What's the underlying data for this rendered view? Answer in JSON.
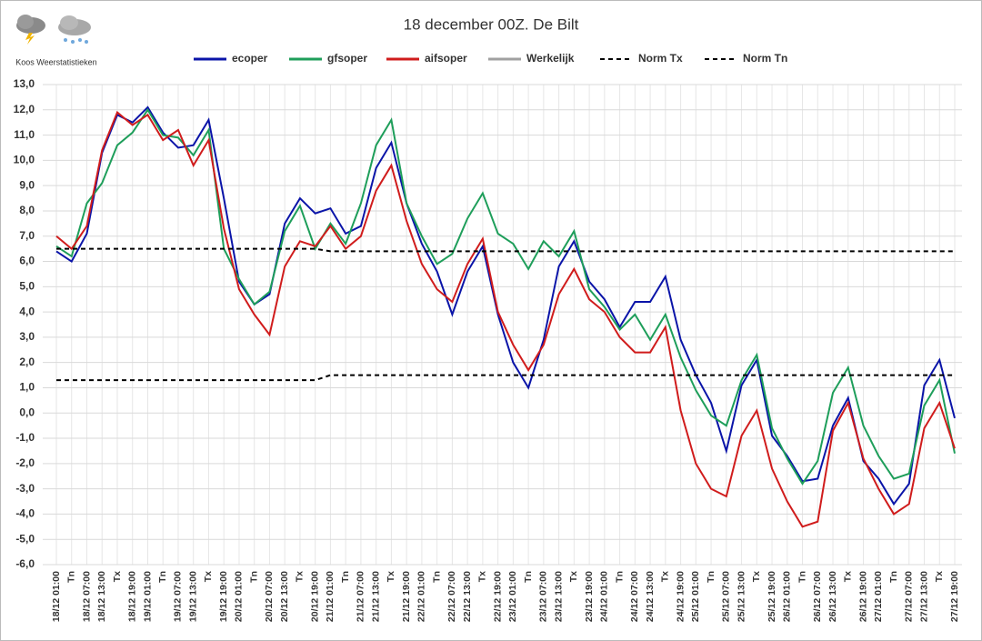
{
  "chart_data": {
    "type": "line",
    "title": "18 december 00Z. De Bilt",
    "brand": "Koos Weerstatistieken",
    "categories": [
      "18/12 01:00",
      "Tn",
      "18/12 07:00",
      "18/12 13:00",
      "Tx",
      "18/12 19:00",
      "19/12 01:00",
      "Tn",
      "19/12 07:00",
      "19/12 13:00",
      "Tx",
      "19/12 19:00",
      "20/12 01:00",
      "Tn",
      "20/12 07:00",
      "20/12 13:00",
      "Tx",
      "20/12 19:00",
      "21/12 01:00",
      "Tn",
      "21/12 07:00",
      "21/12 13:00",
      "Tx",
      "21/12 19:00",
      "22/12 01:00",
      "Tn",
      "22/12 07:00",
      "22/12 13:00",
      "Tx",
      "22/12 19:00",
      "23/12 01:00",
      "Tn",
      "23/12 07:00",
      "23/12 13:00",
      "Tx",
      "23/12 19:00",
      "24/12 01:00",
      "Tn",
      "24/12 07:00",
      "24/12 13:00",
      "Tx",
      "24/12 19:00",
      "25/12 01:00",
      "Tn",
      "25/12 07:00",
      "25/12 13:00",
      "Tx",
      "25/12 19:00",
      "26/12 01:00",
      "Tn",
      "26/12 07:00",
      "26/12 13:00",
      "Tx",
      "26/12 19:00",
      "27/12 01:00",
      "Tn",
      "27/12 07:00",
      "27/12 13:00",
      "Tx",
      "27/12 19:00"
    ],
    "series": [
      {
        "name": "ecoper",
        "color": "#0a14a8",
        "dashed": false,
        "values": [
          6.4,
          6.0,
          7.1,
          10.3,
          11.8,
          11.5,
          12.1,
          11.1,
          10.5,
          10.6,
          11.6,
          8.5,
          5.2,
          4.3,
          4.7,
          7.5,
          8.5,
          7.9,
          8.1,
          7.1,
          7.4,
          9.7,
          10.7,
          8.3,
          6.7,
          5.6,
          3.9,
          5.6,
          6.6,
          3.9,
          2.0,
          1.0,
          2.9,
          5.8,
          6.8,
          5.2,
          4.5,
          3.4,
          4.4,
          4.4,
          5.4,
          2.9,
          1.5,
          0.4,
          -1.5,
          1.1,
          2.1,
          -0.9,
          -1.7,
          -2.7,
          -2.6,
          -0.5,
          0.6,
          -1.9,
          -2.6,
          -3.6,
          -2.8,
          1.1,
          2.1,
          -0.2
        ]
      },
      {
        "name": "gfsoper",
        "color": "#1e9e5a",
        "dashed": false,
        "values": [
          6.6,
          6.2,
          8.3,
          9.1,
          10.6,
          11.1,
          12.0,
          11.0,
          10.9,
          10.2,
          11.2,
          6.5,
          5.3,
          4.3,
          4.8,
          7.2,
          8.2,
          6.5,
          7.5,
          6.7,
          8.3,
          10.6,
          11.6,
          8.3,
          7.0,
          5.9,
          6.3,
          7.7,
          8.7,
          7.1,
          6.7,
          5.7,
          6.8,
          6.2,
          7.2,
          4.9,
          4.2,
          3.3,
          3.9,
          2.9,
          3.9,
          2.2,
          0.9,
          -0.1,
          -0.5,
          1.3,
          2.3,
          -0.6,
          -1.8,
          -2.8,
          -1.9,
          0.8,
          1.8,
          -0.5,
          -1.7,
          -2.6,
          -2.4,
          0.3,
          1.3,
          -1.6
        ]
      },
      {
        "name": "aifsoper",
        "color": "#d01c1c",
        "dashed": false,
        "values": [
          7.0,
          6.5,
          7.4,
          10.4,
          11.9,
          11.4,
          11.8,
          10.8,
          11.2,
          9.8,
          10.8,
          7.3,
          4.9,
          3.9,
          3.1,
          5.8,
          6.8,
          6.6,
          7.4,
          6.5,
          7.0,
          8.8,
          9.8,
          7.6,
          5.9,
          4.9,
          4.4,
          5.9,
          6.9,
          4.0,
          2.7,
          1.7,
          2.7,
          4.7,
          5.7,
          4.5,
          4.0,
          3.0,
          2.4,
          2.4,
          3.4,
          0.1,
          -2.0,
          -3.0,
          -3.3,
          -0.9,
          0.1,
          -2.2,
          -3.5,
          -4.5,
          -4.3,
          -0.7,
          0.4,
          -1.8,
          -3.0,
          -4.0,
          -3.6,
          -0.6,
          0.4,
          -1.4
        ]
      },
      {
        "name": "Werkelijk",
        "color": "#a0a0a0",
        "dashed": false,
        "values": [
          null,
          null,
          null,
          null,
          null,
          null,
          null,
          null,
          null,
          null,
          null,
          null,
          null,
          null,
          null,
          null,
          null,
          null,
          null,
          null,
          null,
          null,
          null,
          null,
          null,
          null,
          null,
          null,
          null,
          null,
          null,
          null,
          null,
          null,
          null,
          null,
          null,
          null,
          null,
          null,
          null,
          null,
          null,
          null,
          null,
          null,
          null,
          null,
          null,
          null,
          null,
          null,
          null,
          null,
          null,
          null,
          null,
          null,
          null,
          null
        ]
      },
      {
        "name": "Norm Tx",
        "color": "#000000",
        "dashed": true,
        "values": [
          6.5,
          6.5,
          6.5,
          6.5,
          6.5,
          6.5,
          6.5,
          6.5,
          6.5,
          6.5,
          6.5,
          6.5,
          6.5,
          6.5,
          6.5,
          6.5,
          6.5,
          6.5,
          6.4,
          6.4,
          6.4,
          6.4,
          6.4,
          6.4,
          6.4,
          6.4,
          6.4,
          6.4,
          6.4,
          6.4,
          6.4,
          6.4,
          6.4,
          6.4,
          6.4,
          6.4,
          6.4,
          6.4,
          6.4,
          6.4,
          6.4,
          6.4,
          6.4,
          6.4,
          6.4,
          6.4,
          6.4,
          6.4,
          6.4,
          6.4,
          6.4,
          6.4,
          6.4,
          6.4,
          6.4,
          6.4,
          6.4,
          6.4,
          6.4,
          6.4
        ]
      },
      {
        "name": "Norm Tn",
        "color": "#000000",
        "dashed": true,
        "values": [
          1.3,
          1.3,
          1.3,
          1.3,
          1.3,
          1.3,
          1.3,
          1.3,
          1.3,
          1.3,
          1.3,
          1.3,
          1.3,
          1.3,
          1.3,
          1.3,
          1.3,
          1.3,
          1.5,
          1.5,
          1.5,
          1.5,
          1.5,
          1.5,
          1.5,
          1.5,
          1.5,
          1.5,
          1.5,
          1.5,
          1.5,
          1.5,
          1.5,
          1.5,
          1.5,
          1.5,
          1.5,
          1.5,
          1.5,
          1.5,
          1.5,
          1.5,
          1.5,
          1.5,
          1.5,
          1.5,
          1.5,
          1.5,
          1.5,
          1.5,
          1.5,
          1.5,
          1.5,
          1.5,
          1.5,
          1.5,
          1.5,
          1.5,
          1.5,
          1.5
        ]
      }
    ],
    "ylim": [
      -6,
      13
    ],
    "yticks": [
      {
        "value": -6,
        "label": "-6,0"
      },
      {
        "value": -5,
        "label": "-5,0"
      },
      {
        "value": -4,
        "label": "-4,0"
      },
      {
        "value": -3,
        "label": "-3,0"
      },
      {
        "value": -2,
        "label": "-2,0"
      },
      {
        "value": -1,
        "label": "-1,0"
      },
      {
        "value": 0,
        "label": "0,0"
      },
      {
        "value": 1,
        "label": "1,0"
      },
      {
        "value": 2,
        "label": "2,0"
      },
      {
        "value": 3,
        "label": "3,0"
      },
      {
        "value": 4,
        "label": "4,0"
      },
      {
        "value": 5,
        "label": "5,0"
      },
      {
        "value": 6,
        "label": "6,0"
      },
      {
        "value": 7,
        "label": "7,0"
      },
      {
        "value": 8,
        "label": "8,0"
      },
      {
        "value": 9,
        "label": "9,0"
      },
      {
        "value": 10,
        "label": "10,0"
      },
      {
        "value": 11,
        "label": "11,0"
      },
      {
        "value": 12,
        "label": "12,0"
      },
      {
        "value": 13,
        "label": "13,0"
      }
    ],
    "grid": true,
    "legend": "top"
  }
}
